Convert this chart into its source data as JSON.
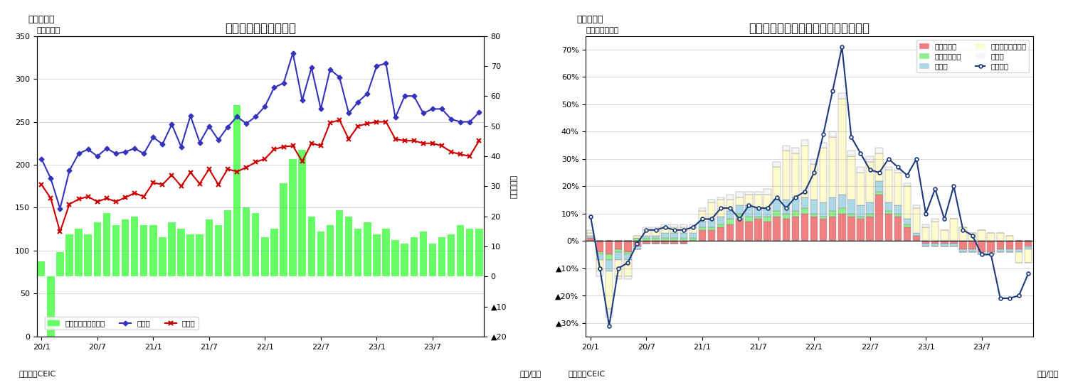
{
  "fig7": {
    "title": "マレーシア　貿易収支",
    "header": "（図表７）",
    "ylabel_left": "（億ドル）",
    "ylabel_right": "（億ドル）",
    "source": "（資料）CEIC",
    "xlabel": "（年/月）",
    "ylim_left": [
      0,
      350
    ],
    "ylim_right": [
      -20,
      80
    ],
    "bar_color": "#66FF66",
    "line_export_color": "#3333BB",
    "line_import_color": "#CC0000",
    "legend_labels": [
      "貿易収支（右目盛）",
      "輸出額",
      "輸入額"
    ],
    "x_labels": [
      "20/1",
      "20/7",
      "21/1",
      "21/7",
      "22/1",
      "22/7",
      "23/1",
      "23/7"
    ],
    "x_tick_positions": [
      0,
      6,
      12,
      18,
      24,
      30,
      36,
      42
    ],
    "trade_balance": [
      5,
      -28,
      8,
      14,
      16,
      14,
      18,
      21,
      17,
      19,
      20,
      17,
      17,
      13,
      18,
      16,
      14,
      14,
      19,
      17,
      22,
      57,
      23,
      21,
      13,
      16,
      31,
      39,
      42,
      20,
      15,
      17,
      22,
      20,
      16,
      18,
      14,
      16,
      12,
      11,
      13,
      15,
      11,
      13,
      14,
      17,
      16,
      16
    ],
    "exports": [
      207,
      184,
      149,
      193,
      213,
      218,
      210,
      219,
      213,
      215,
      219,
      213,
      232,
      224,
      247,
      221,
      257,
      226,
      245,
      229,
      244,
      256,
      248,
      256,
      268,
      290,
      295,
      330,
      275,
      313,
      265,
      311,
      302,
      260,
      273,
      283,
      315,
      318,
      255,
      280,
      280,
      260,
      265,
      265,
      253,
      250,
      250,
      261
    ],
    "imports": [
      177,
      161,
      122,
      154,
      160,
      163,
      157,
      161,
      157,
      162,
      167,
      163,
      179,
      177,
      188,
      175,
      191,
      178,
      195,
      177,
      195,
      192,
      197,
      203,
      207,
      218,
      221,
      222,
      204,
      225,
      222,
      249,
      252,
      230,
      245,
      248,
      250,
      250,
      230,
      228,
      228,
      225,
      225,
      222,
      215,
      212,
      210,
      228
    ]
  },
  "fig8": {
    "title": "マレーシア　輸出の伸び率（品目別）",
    "header": "（図表８）",
    "ylabel_left": "（前年同月比）",
    "source": "（資料）CEIC",
    "xlabel": "（年/月）",
    "ylim": [
      -0.35,
      0.75
    ],
    "yticks_vals": [
      0.7,
      0.6,
      0.5,
      0.4,
      0.3,
      0.2,
      0.1,
      0.0,
      -0.1,
      -0.2,
      -0.3
    ],
    "yticks_labels": [
      "70%",
      "60%",
      "50%",
      "40%",
      "30%",
      "20%",
      "10%",
      "0%",
      "▲10%",
      "▲20%",
      "▲30%"
    ],
    "x_labels": [
      "20/1",
      "20/7",
      "21/1",
      "21/7",
      "22/1",
      "22/7",
      "23/1",
      "23/7"
    ],
    "x_tick_positions": [
      0,
      6,
      12,
      18,
      24,
      30,
      36,
      42
    ],
    "bar_colors": {
      "mineral_fuel": "#F08080",
      "animal_veg_oil": "#90EE90",
      "manufactured": "#ADD8E6",
      "machinery": "#FFFACD",
      "other": "#F5F5F5"
    },
    "line_color": "#1F3A7A",
    "mineral_fuel": [
      0.01,
      -0.04,
      -0.05,
      -0.03,
      -0.04,
      -0.02,
      -0.01,
      -0.01,
      -0.01,
      -0.01,
      -0.01,
      0.0,
      0.04,
      0.04,
      0.05,
      0.06,
      0.08,
      0.07,
      0.08,
      0.07,
      0.09,
      0.08,
      0.09,
      0.1,
      0.09,
      0.08,
      0.09,
      0.1,
      0.09,
      0.08,
      0.09,
      0.17,
      0.1,
      0.09,
      0.05,
      0.02,
      -0.01,
      -0.01,
      -0.01,
      -0.01,
      -0.03,
      -0.03,
      -0.04,
      -0.04,
      -0.03,
      -0.03,
      -0.03,
      -0.02
    ],
    "animal_veg_oil": [
      0.0,
      -0.01,
      -0.02,
      -0.01,
      -0.01,
      0.01,
      0.01,
      0.01,
      0.01,
      0.01,
      0.01,
      0.01,
      0.01,
      0.01,
      0.01,
      0.02,
      0.02,
      0.02,
      0.01,
      0.02,
      0.02,
      0.02,
      0.02,
      0.02,
      0.01,
      0.01,
      0.02,
      0.02,
      0.01,
      0.01,
      0.01,
      0.01,
      0.01,
      0.01,
      0.01,
      0.0,
      0.0,
      0.0,
      0.0,
      0.0,
      0.0,
      0.0,
      0.0,
      0.0,
      0.0,
      0.0,
      0.0,
      0.0
    ],
    "manufactured": [
      0.01,
      -0.02,
      -0.04,
      -0.03,
      -0.02,
      -0.01,
      0.01,
      0.01,
      0.02,
      0.02,
      0.02,
      0.02,
      0.02,
      0.03,
      0.03,
      0.03,
      0.03,
      0.04,
      0.03,
      0.03,
      0.04,
      0.05,
      0.05,
      0.04,
      0.05,
      0.05,
      0.05,
      0.05,
      0.05,
      0.04,
      0.04,
      0.04,
      0.03,
      0.03,
      0.02,
      0.01,
      -0.01,
      -0.01,
      -0.01,
      -0.01,
      -0.01,
      -0.01,
      -0.01,
      -0.01,
      -0.01,
      -0.01,
      -0.01,
      -0.01
    ],
    "machinery": [
      0.01,
      -0.04,
      -0.14,
      -0.06,
      -0.06,
      0.01,
      0.02,
      0.02,
      0.02,
      0.02,
      0.02,
      0.02,
      0.04,
      0.06,
      0.06,
      0.04,
      0.03,
      0.04,
      0.05,
      0.05,
      0.12,
      0.18,
      0.16,
      0.19,
      0.13,
      0.2,
      0.22,
      0.35,
      0.16,
      0.12,
      0.15,
      0.1,
      0.12,
      0.12,
      0.12,
      0.09,
      0.05,
      0.07,
      0.04,
      0.08,
      0.05,
      0.03,
      0.04,
      0.03,
      0.03,
      0.02,
      -0.04,
      -0.05
    ],
    "other": [
      0.01,
      -0.02,
      -0.03,
      -0.01,
      -0.01,
      0.0,
      0.01,
      0.01,
      0.01,
      0.01,
      0.01,
      0.01,
      0.01,
      0.01,
      0.01,
      0.02,
      0.02,
      0.01,
      0.01,
      0.02,
      0.02,
      0.02,
      0.02,
      0.02,
      0.02,
      0.02,
      0.02,
      0.02,
      0.02,
      0.02,
      0.02,
      0.02,
      0.01,
      0.01,
      0.01,
      0.01,
      0.01,
      0.01,
      0.0,
      0.0,
      0.0,
      0.0,
      0.0,
      0.0,
      0.0,
      0.0,
      0.0,
      0.0
    ],
    "total_export_growth": [
      0.09,
      -0.1,
      -0.31,
      -0.1,
      -0.08,
      -0.01,
      0.04,
      0.04,
      0.05,
      0.04,
      0.04,
      0.05,
      0.08,
      0.08,
      0.12,
      0.12,
      0.08,
      0.13,
      0.12,
      0.12,
      0.16,
      0.12,
      0.16,
      0.18,
      0.25,
      0.39,
      0.55,
      0.71,
      0.38,
      0.32,
      0.26,
      0.25,
      0.3,
      0.27,
      0.24,
      0.3,
      0.1,
      0.19,
      0.08,
      0.2,
      0.04,
      0.02,
      -0.05,
      -0.05,
      -0.21,
      -0.21,
      -0.2,
      -0.12
    ]
  }
}
